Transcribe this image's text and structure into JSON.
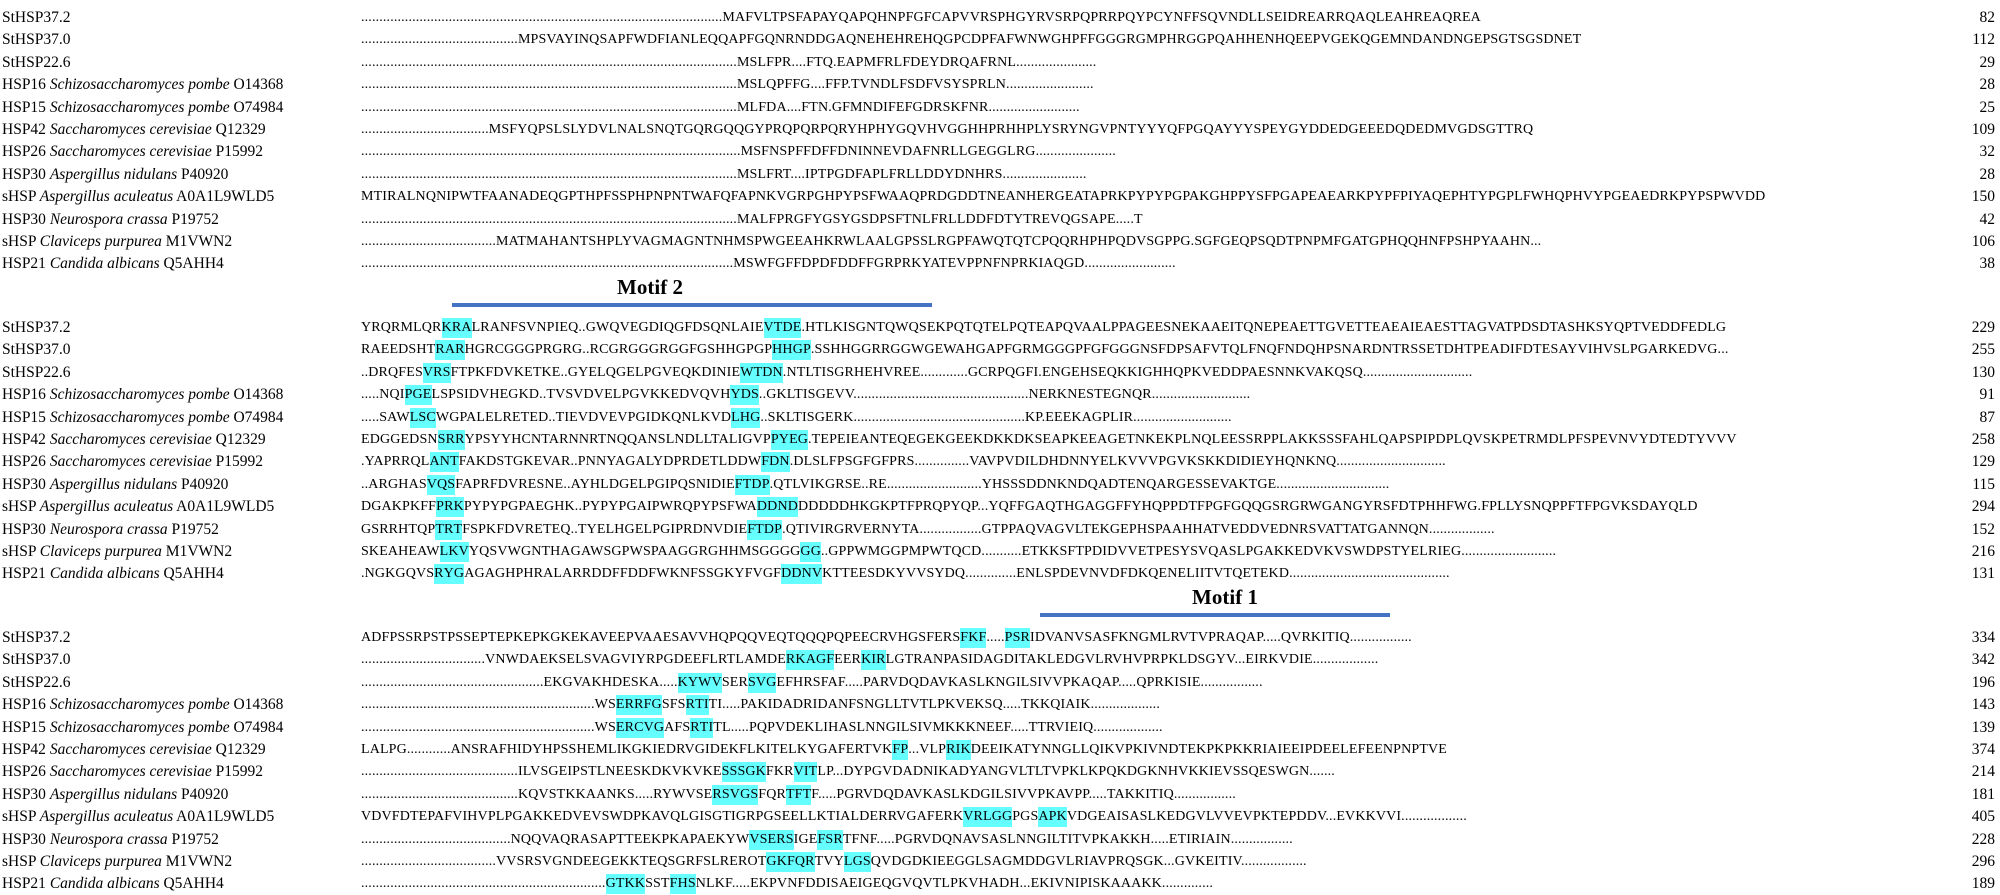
{
  "motifs": [
    {
      "label": "Motif 2"
    },
    {
      "label": "Motif 1"
    }
  ],
  "species_names": [
    {
      "prefix": "StHSP37.2",
      "species": "",
      "accession": ""
    },
    {
      "prefix": "StHSP37.0",
      "species": "",
      "accession": ""
    },
    {
      "prefix": "StHSP22.6",
      "species": "",
      "accession": ""
    },
    {
      "prefix": "HSP16",
      "species": "Schizosaccharomyces pombe",
      "accession": "O14368"
    },
    {
      "prefix": "HSP15",
      "species": "Schizosaccharomyces pombe",
      "accession": "O74984"
    },
    {
      "prefix": "HSP42",
      "species": "Saccharomyces cerevisiae",
      "accession": "Q12329"
    },
    {
      "prefix": "HSP26",
      "species": "Saccharomyces cerevisiae",
      "accession": "P15992"
    },
    {
      "prefix": "HSP30",
      "species": "Aspergillus nidulans",
      "accession": "P40920"
    },
    {
      "prefix": "sHSP",
      "species": "Aspergillus aculeatus",
      "accession": "A0A1L9WLD5"
    },
    {
      "prefix": "HSP30",
      "species": "Neurospora crassa",
      "accession": "P19752"
    },
    {
      "prefix": "sHSP",
      "species": "Claviceps purpurea",
      "accession": "M1VWN2"
    },
    {
      "prefix": "HSP21",
      "species": "Candida albicans",
      "accession": "Q5AHH4"
    }
  ],
  "shading_colors": {
    "Y": "#ffff99",
    "C": "#66ffff",
    "P": "#ff99cc",
    "K": "#000066"
  },
  "blocks": [
    {
      "rows": [
        {
          "seq": "...................................................................................................MAFVLTPSFAPAYQAPQHNPFGFCAPVVRSPHGYRVSRPQPRRPQYPCYNFFSQVNDLLSEIDREARRQAQLEAHREAQREA",
          "num": "82"
        },
        {
          "seq": "...........................................MPSVAYINQSAPFWDFIANLEQQAPFGQNRNDDGAQNEHEHREHQGPCDPFAFWNWGHPFFGGGRGMPHRGGPQAHHENHQEEPVGEKQGEMNDANDNGEPSGTSGSDNET",
          "num": "112"
        },
        {
          "seq": ".......................................................................................................MSLFPR....FTQ.EAPMFRLFDEYDRQAFRNL......................",
          "num": "29"
        },
        {
          "seq": ".......................................................................................................MSLQPFFG....FFP.TVNDLFSDFVSYSPRLN........................",
          "num": "28"
        },
        {
          "seq": ".......................................................................................................MLFDA....FTN.GFMNDIFEFGDRSKFNR.........................",
          "num": "25"
        },
        {
          "seq": "...................................MSFYQPSLSLYDVLNALSNQTGQRGQQGYPRQPQRPQRYHPHYGQVHVGGHHPRHHPLYSRYNGVPNTYYYQFPGQAYYYSPEYGYDDEDGEEEDQDEDMVGDSGTTRQ",
          "num": "109"
        },
        {
          "seq": "........................................................................................................MSFNSPFFDFFDNINNEVDAFNRLLGEGGLRG......................",
          "num": "32"
        },
        {
          "seq": ".......................................................................................................MSLFRT....IPTPGDFAPLFRLLDDYDNHRS.......................",
          "num": "28"
        },
        {
          "seq": "MTIRALNQNIPWTFAANADEQGPTHPFSSPHPNPNTWAFQFAPNKVGRPGHPYPSFWAAQPRDGDDTNEANHERGEATAPRKPYPYPGPAKGHPPYSFPGAPEAEARKPYPFPIYAQEPHTYPGPLFWHQPHVYPGEAEDRKPYPSPWVDD",
          "num": "150"
        },
        {
          "seq": ".......................................................................................................MALFPRGFYGSYGSDPSFTNLFRLLDDFDTYTREVQGSAPE.....T",
          "num": "42"
        },
        {
          "seq": ".....................................MATMAHANTSHPLYVAGMAGNTNHMSPWGEEAHKRWLAALGPSSLRGPFAWQTQTCPQQRHPHPQDVSGPPG.SGFGEQPSQDTPNPMFGATGPHQQHNFPSHPYAAHN...",
          "num": "106"
        },
        {
          "seq": "......................................................................................................MSWFGFFDPDFDDFFGRPRKYATEVPPNFNPRKIAQGD.........................",
          "num": "38"
        }
      ]
    },
    {
      "rows": [
        {
          "seq": "YRQRMLQRKRALRANFSVNPIEQ..GWQVEGDIQGFDSQNLAIEVTDE.HTLKISGNTQWQSEKPQTQTELPQTEAPQVAALPPAGEESNEKAAEITQNEPEAETTGVETTEAEAIEAESTTAGVATPDSDTASHKSYQPTVEDDFEDLG",
          "num": "229"
        },
        {
          "seq": "RAEEDSHTRARHGRCGGGPRGRG..RCGRGGGRGGFGSHHGPGPHHGP.SSHHGGRRGGWGEWAHGAPFGRMGGGPFGFGGGNSFDPSAFVTQLFNQFNDQHPSNARDNTRSSETDHTPEADIFDTESAYVIHVSLPGARKEDVG...",
          "num": "255"
        },
        {
          "seq": "..DRQFESVRSFTPKFDVKETKE..GYELQGELPGVEQKDINIEWTDN.NTLTISGRHEHVREE.............GCRPQGFI.ENGEHSEQKKIGHHQPKVEDDPAESNNKVAKQSQ..............................",
          "num": "130"
        },
        {
          "seq": ".....NQIPGELSPSIDVHEGKD..TVSVDVELPGVKKEDVQVHYDS..GKLTISGEVV................................................NERKNESTEGNQR...........................",
          "num": "91"
        },
        {
          "seq": ".....SAWLSCWGPALELRETED..TIEVDVEVPGIDKQNLKVDLHG..SKLTISGERK...............................................KP.EEEKAGPLIR...........................",
          "num": "87"
        },
        {
          "seq": "EDGGEDSNSRRYPSYYHCNTARNNRTNQQANSLNDLLTALIGVPPYEG.TEPEIEANTEQEGEKGEEKDKKDKSEAPKEEAGETNKEKPLNQLEESSRPPLAKKSSSFAHLQAPSPIPDPLQVSKPETRMDLPFSPEVNVYDTEDTYVVV",
          "num": "258"
        },
        {
          "seq": ".YAPRRQLANTFAKDSTGKEVAR..PNNYAGALYDPRDETLDDWFDN.DLSLFPSGFGFPRS...............VAVPVDILDHDNNYELKVVVPGVKSKKDIDIEYHQNKNQ..............................",
          "num": "129"
        },
        {
          "seq": "..ARGHASVQSFAPRFDVRESNE..AYHLDGELPGIPQSNIDIEFTDP.QTLVIKGRSE..RE..........................YHSSSDDNKNDQADTENQARGESSEVAKTGE...............................",
          "num": "115"
        },
        {
          "seq": "DGAKPKFFPRKPYPYPGPAEGHK..PYPYPGAIPWRQPYPSFWADDNDDDDDDHKGKPTFPRQPYQP...YQFFGAQTHGAGGFFYHQPPDTFPGFGQQGSRGRWGANGYRSFDTPHHFWG.FPLLYSNQPPFTFPGVKSDAYQLD",
          "num": "294"
        },
        {
          "seq": "GSRRHTQPTRTFSPKFDVRETEQ..TYELHGELPGIPRDNVDIEFTDP.QTIVIRGRVERNYTA.................GTPPAQVAGVLTEKGEPHSPAAHHATVEDDVEDNRSVATTATGANNQN..................",
          "num": "152"
        },
        {
          "seq": "SKEAHEAWLKVYQSVWGNTHAGAWSGPWSPAAGGRGHHMSGGGGGG..GPPWMGGPMPWTQCD...........ETKKSFTPDIDVVETPESYSVQASLPGAKKEDVKVSWDPSTYELRIEG..........................",
          "num": "216"
        },
        {
          "seq": ".NGKGQVSRYGAGAGHPHRALARRDDFFDDFWKNFSSGKYFVGFDDNVKTTEESDKYVVSYDQ..............ENLSPDEVNVDFDKQENELIITVTQETEKD............................................",
          "num": "131"
        }
      ]
    },
    {
      "rows": [
        {
          "seq": "ADFPSSRPSTPSSEPTEPKEPKGKEKAVEEPVAAESAVVHQPQQVEQTQQQPQPEECRVHGSFERSFKF.....PSRIDVANVSASFKNGMLRVTVPRAQAP.....QVRKITIQ.................",
          "num": "334"
        },
        {
          "seq": "..................................VNWDAEKSELSVAGVIYRPGDEEFLRTLAMDERKAGFEERKIRLGTRANPASIDAGDITAKLEDGVLRVHVPRPKLDSGYV...EIRKVDIE..................",
          "num": "342"
        },
        {
          "seq": "..................................................EKGVAKHDESKA.....KYWVSERSVGEFHRSFAF.....PARVDQDAVKASLKNGILSIVVPKAQAP.....QPRKISIE.................",
          "num": "196"
        },
        {
          "seq": "................................................................WSERRFGSFSRTITI.....PAKIDADRIDANFSNGLLTVTLPKVEKSQ.....TKKQIAIK...................",
          "num": "143"
        },
        {
          "seq": "................................................................WSERCVGAFSRTITL.....PQPVDEKLIHASLNNGILSIVMKKKNEEF.....TTRVIEIQ...................",
          "num": "139"
        },
        {
          "seq": "LALPG............ANSRAFHIDYHPSSHEMLIKGKIEDRVGIDEKFLKITELKYGAFERTVKFP...VLPRIKDEEIKATYNNGLLQIKVPKIVNDTEKPKPKKRIAIEEIPDEELEFEENPNPTVE",
          "num": "374"
        },
        {
          "seq": "...........................................ILVSGEIPSTLNEESKDKVKVKESSSGKFKRVITLP...DYPGVDADNIKADYANGVLTLTVPKLKPQKDGKNHVKKIEVSSQESWGN.......",
          "num": "214"
        },
        {
          "seq": "...........................................KQVSTKKAANKS.....RYWVSERSVGSFQRTFTF.....PGRVDQDAVKASLKDGILSIVVPKAVPP.....TAKKITIQ.................",
          "num": "181"
        },
        {
          "seq": "VDVFDTEPAFVIHVPLPGAKKEDVEVSWDPKAVQLGISGTIGRPGSEELLKTIALDERRVGAFERKVRLGGPGSAPKVDGEAISASLKEDGVLVVEVPKTEPDDV...EVKKVVI..................",
          "num": "405"
        },
        {
          "seq": ".........................................NQQVAQRASAPTTEEKPKAPAEKYWVSERSIGEFSRTFNF.....PGRVDQNAVSASLNNGILTITVPKAKKH.....ETIRIAIN.................",
          "num": "228"
        },
        {
          "seq": ".....................................VVSRSVGNDEEGEKKTEQSGRFSLREROTGKFQRTVYLGSQVDGDKIEEGGLSAGMDDGVLRIAVPRQSGK...GVKEITIV..................",
          "num": "296"
        },
        {
          "seq": "...................................................................GTKKSSTFHSNLKF.....EKPVNFDDISAEIGEQGVQVTLPKVHADH...EKIVNIPISKAAAKK..............",
          "num": "189"
        }
      ]
    }
  ]
}
